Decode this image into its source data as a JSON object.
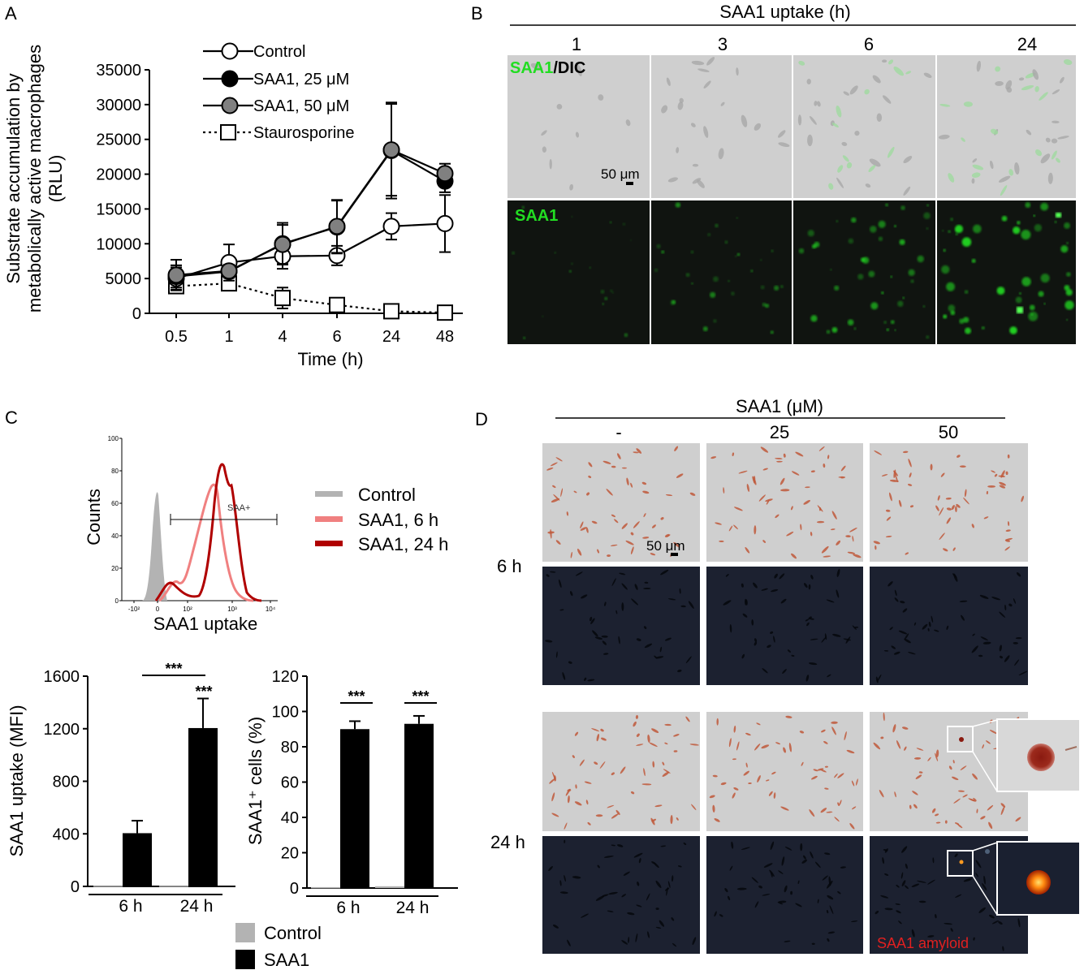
{
  "panel_labels": {
    "a": "A",
    "b": "B",
    "c": "C",
    "d": "D"
  },
  "panel_a": {
    "ylabel_line1": "Substrate accumulation by",
    "ylabel_line2": "metabolically active  macrophages",
    "ylabel_line3": "(RLU)",
    "xlabel": "Time (h)"
  },
  "panel_b": {
    "header": "SAA1 uptake (h)",
    "columns": [
      "1",
      "3",
      "6",
      "24"
    ],
    "label_top_green": "SAA1",
    "label_top_black": "/DIC",
    "label_bottom": "SAA1",
    "scalebar": "50 μm"
  },
  "panel_c": {
    "flow_ylabel": "Counts",
    "flow_xlabel": "SAA1 uptake",
    "flow_gate": "SAA+",
    "flow_yticks": [
      "0",
      "20",
      "40",
      "60",
      "80",
      "100"
    ],
    "flow_xticks": [
      "-10²",
      "0",
      "10²",
      "10³",
      "10⁴"
    ],
    "flow_legend": [
      "Control",
      "SAA1, 6 h",
      "SAA1, 24 h"
    ],
    "bar_legend": [
      "Control",
      "SAA1"
    ],
    "sig": "***"
  },
  "panel_d": {
    "header": "SAA1 (μM)",
    "columns": [
      "-",
      "25",
      "50"
    ],
    "rows": [
      "6 h",
      "24 h"
    ],
    "scalebar": "50 μm",
    "amyloid_label": "SAA1 amyloid"
  },
  "colors": {
    "control_gray": "#b3b3b3",
    "saa1_6h": "#f08080",
    "saa1_24h": "#b00000",
    "green": "#22dd22",
    "marker_gray": "#808080",
    "dark_field": "#1c2130",
    "bright_field": "#cfcfcf"
  },
  "chart_data": [
    {
      "type": "line",
      "panel": "A",
      "x": [
        "0.5",
        "1",
        "4",
        "6",
        "24",
        "48"
      ],
      "xlabel": "Time (h)",
      "ylabel": "Substrate accumulation by metabolically active macrophages (RLU)",
      "ylim": [
        0,
        35000
      ],
      "yticks": [
        0,
        5000,
        10000,
        15000,
        20000,
        25000,
        30000,
        35000
      ],
      "legend_position": "top-right",
      "series": [
        {
          "name": "Control",
          "marker": "open-circle",
          "line": "solid",
          "values": [
            5000,
            7300,
            8200,
            8300,
            12500,
            12900
          ],
          "errors": [
            1600,
            2600,
            1800,
            1400,
            1900,
            4100
          ]
        },
        {
          "name": "SAA1, 25 μM",
          "marker": "filled-black-circle",
          "line": "solid",
          "values": [
            5300,
            6000,
            10000,
            12400,
            23400,
            19000
          ],
          "errors": [
            1600,
            900,
            3000,
            3800,
            6900,
            1600
          ]
        },
        {
          "name": "SAA1, 50 μM",
          "marker": "filled-gray-circle",
          "line": "solid",
          "values": [
            5500,
            6100,
            9900,
            12500,
            23500,
            20100
          ],
          "errors": [
            2200,
            900,
            2800,
            3800,
            6600,
            1400
          ]
        },
        {
          "name": "Staurosporine",
          "marker": "open-square",
          "line": "dotted",
          "values": [
            3900,
            4300,
            2200,
            1200,
            300,
            100
          ],
          "errors": [
            400,
            1000,
            1500,
            200,
            100,
            50
          ]
        }
      ]
    },
    {
      "type": "bar",
      "panel": "C-left",
      "categories": [
        "6 h",
        "24 h"
      ],
      "ylabel": "SAA1 uptake (MFI)",
      "ylim": [
        0,
        1600
      ],
      "yticks": [
        0,
        400,
        800,
        1200,
        1600
      ],
      "series": [
        {
          "name": "Control",
          "values": [
            5,
            5
          ],
          "errors": [
            0,
            0
          ]
        },
        {
          "name": "SAA1",
          "values": [
            405,
            1205
          ],
          "errors": [
            95,
            225
          ]
        }
      ],
      "significance": [
        "***",
        "***"
      ]
    },
    {
      "type": "bar",
      "panel": "C-right",
      "categories": [
        "6 h",
        "24 h"
      ],
      "ylabel": "SAA1⁺ cells (%)",
      "ylim": [
        0,
        120
      ],
      "yticks": [
        0,
        20,
        40,
        60,
        80,
        100,
        120
      ],
      "series": [
        {
          "name": "Control",
          "values": [
            0.5,
            1
          ],
          "errors": [
            0,
            0
          ]
        },
        {
          "name": "SAA1",
          "values": [
            90,
            93
          ],
          "errors": [
            4.5,
            4.5
          ]
        }
      ],
      "significance": [
        "***",
        "***"
      ]
    }
  ]
}
